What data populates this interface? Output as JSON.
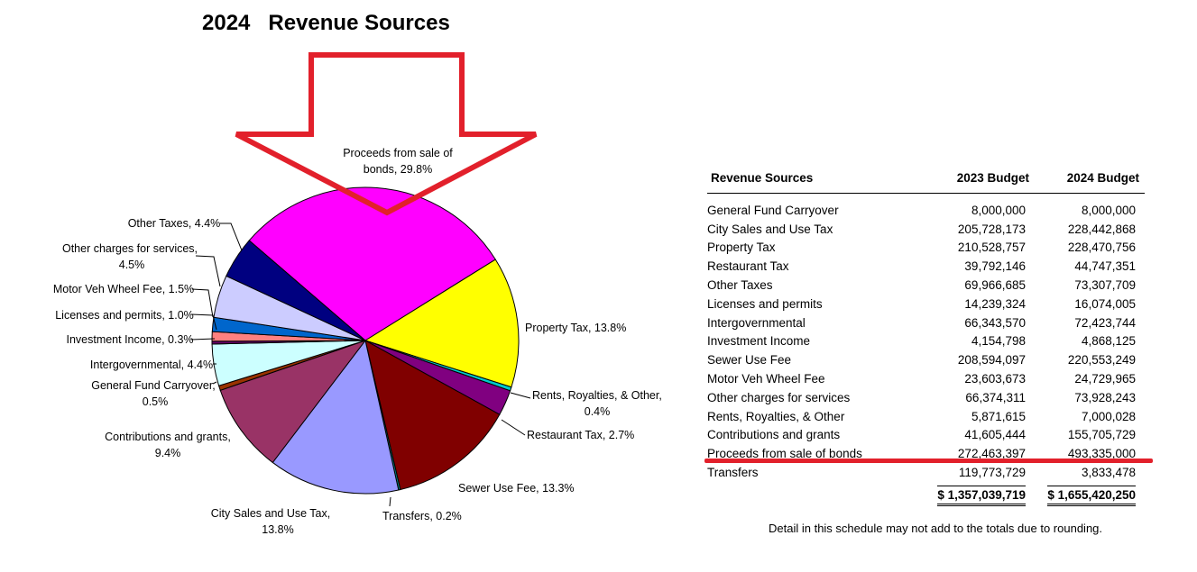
{
  "title": "2024   Revenue Sources",
  "chart_data": {
    "type": "pie",
    "title": "2024   Revenue Sources",
    "slices": [
      {
        "label": "Proceeds from sale of bonds",
        "text1": "Proceeds from sale of",
        "text2": "bonds, 29.8%",
        "value": 29.8,
        "color": "#ff00ff"
      },
      {
        "label": "Property Tax",
        "text1": "Property Tax, 13.8%",
        "text2": "",
        "value": 13.8,
        "color": "#ffff00"
      },
      {
        "label": "Rents, Royalties, & Other",
        "text1": "Rents, Royalties, & Other,",
        "text2": "0.4%",
        "value": 0.4,
        "color": "#00cccc"
      },
      {
        "label": "Restaurant Tax",
        "text1": "Restaurant Tax, 2.7%",
        "text2": "",
        "value": 2.7,
        "color": "#800080"
      },
      {
        "label": "Sewer Use Fee",
        "text1": "Sewer Use Fee, 13.3%",
        "text2": "",
        "value": 13.3,
        "color": "#800000"
      },
      {
        "label": "Transfers",
        "text1": "Transfers, 0.2%",
        "text2": "",
        "value": 0.2,
        "color": "#008080"
      },
      {
        "label": "City Sales and Use Tax",
        "text1": "City Sales and Use Tax,",
        "text2": "13.8%",
        "value": 13.8,
        "color": "#9999ff"
      },
      {
        "label": "Contributions and grants",
        "text1": "Contributions and grants,",
        "text2": "9.4%",
        "value": 9.4,
        "color": "#993366"
      },
      {
        "label": "General Fund Carryover",
        "text1": "General Fund Carryover,",
        "text2": "0.5%",
        "value": 0.5,
        "color": "#993300"
      },
      {
        "label": "Intergovernmental",
        "text1": "Intergovernmental, 4.4%",
        "text2": "",
        "value": 4.4,
        "color": "#ccffff"
      },
      {
        "label": "Investment Income",
        "text1": "Investment Income, 0.3%",
        "text2": "",
        "value": 0.3,
        "color": "#660066"
      },
      {
        "label": "Licenses and permits",
        "text1": "Licenses and permits, 1.0%",
        "text2": "",
        "value": 1.0,
        "color": "#ff8080"
      },
      {
        "label": "Motor Veh Wheel Fee",
        "text1": "Motor Veh Wheel Fee, 1.5%",
        "text2": "",
        "value": 1.5,
        "color": "#0066cc"
      },
      {
        "label": "Other charges for services",
        "text1": "Other charges for services,",
        "text2": "4.5%",
        "value": 4.5,
        "color": "#ccccff"
      },
      {
        "label": "Other Taxes",
        "text1": "Other Taxes, 4.4%",
        "text2": "",
        "value": 4.4,
        "color": "#000080"
      }
    ],
    "arrow_color": "#e2202b"
  },
  "table": {
    "headers": [
      "Revenue Sources",
      "2023 Budget",
      "2024 Budget"
    ],
    "rows": [
      [
        "General Fund Carryover",
        "8,000,000",
        "8,000,000"
      ],
      [
        "City Sales and Use Tax",
        "205,728,173",
        "228,442,868"
      ],
      [
        "Property Tax",
        "210,528,757",
        "228,470,756"
      ],
      [
        "Restaurant Tax",
        "39,792,146",
        "44,747,351"
      ],
      [
        "Other Taxes",
        "69,966,685",
        "73,307,709"
      ],
      [
        "Licenses and permits",
        "14,239,324",
        "16,074,005"
      ],
      [
        "Intergovernmental",
        "66,343,570",
        "72,423,744"
      ],
      [
        "Investment Income",
        "4,154,798",
        "4,868,125"
      ],
      [
        "Sewer Use Fee",
        "208,594,097",
        "220,553,249"
      ],
      [
        "Motor Veh Wheel Fee",
        "23,603,673",
        "24,729,965"
      ],
      [
        "Other charges for services",
        "66,374,311",
        "73,928,243"
      ],
      [
        "Rents, Royalties, & Other",
        "5,871,615",
        "7,000,028"
      ],
      [
        "Contributions and grants",
        "41,605,444",
        "155,705,729"
      ],
      [
        "Proceeds from sale of bonds",
        "272,463,397",
        "493,335,000"
      ],
      [
        "Transfers",
        "119,773,729",
        "3,833,478"
      ]
    ],
    "totals": [
      "",
      "$ 1,357,039,719",
      "$ 1,655,420,250"
    ]
  },
  "note": "Detail in this schedule may not add to the totals due to rounding."
}
